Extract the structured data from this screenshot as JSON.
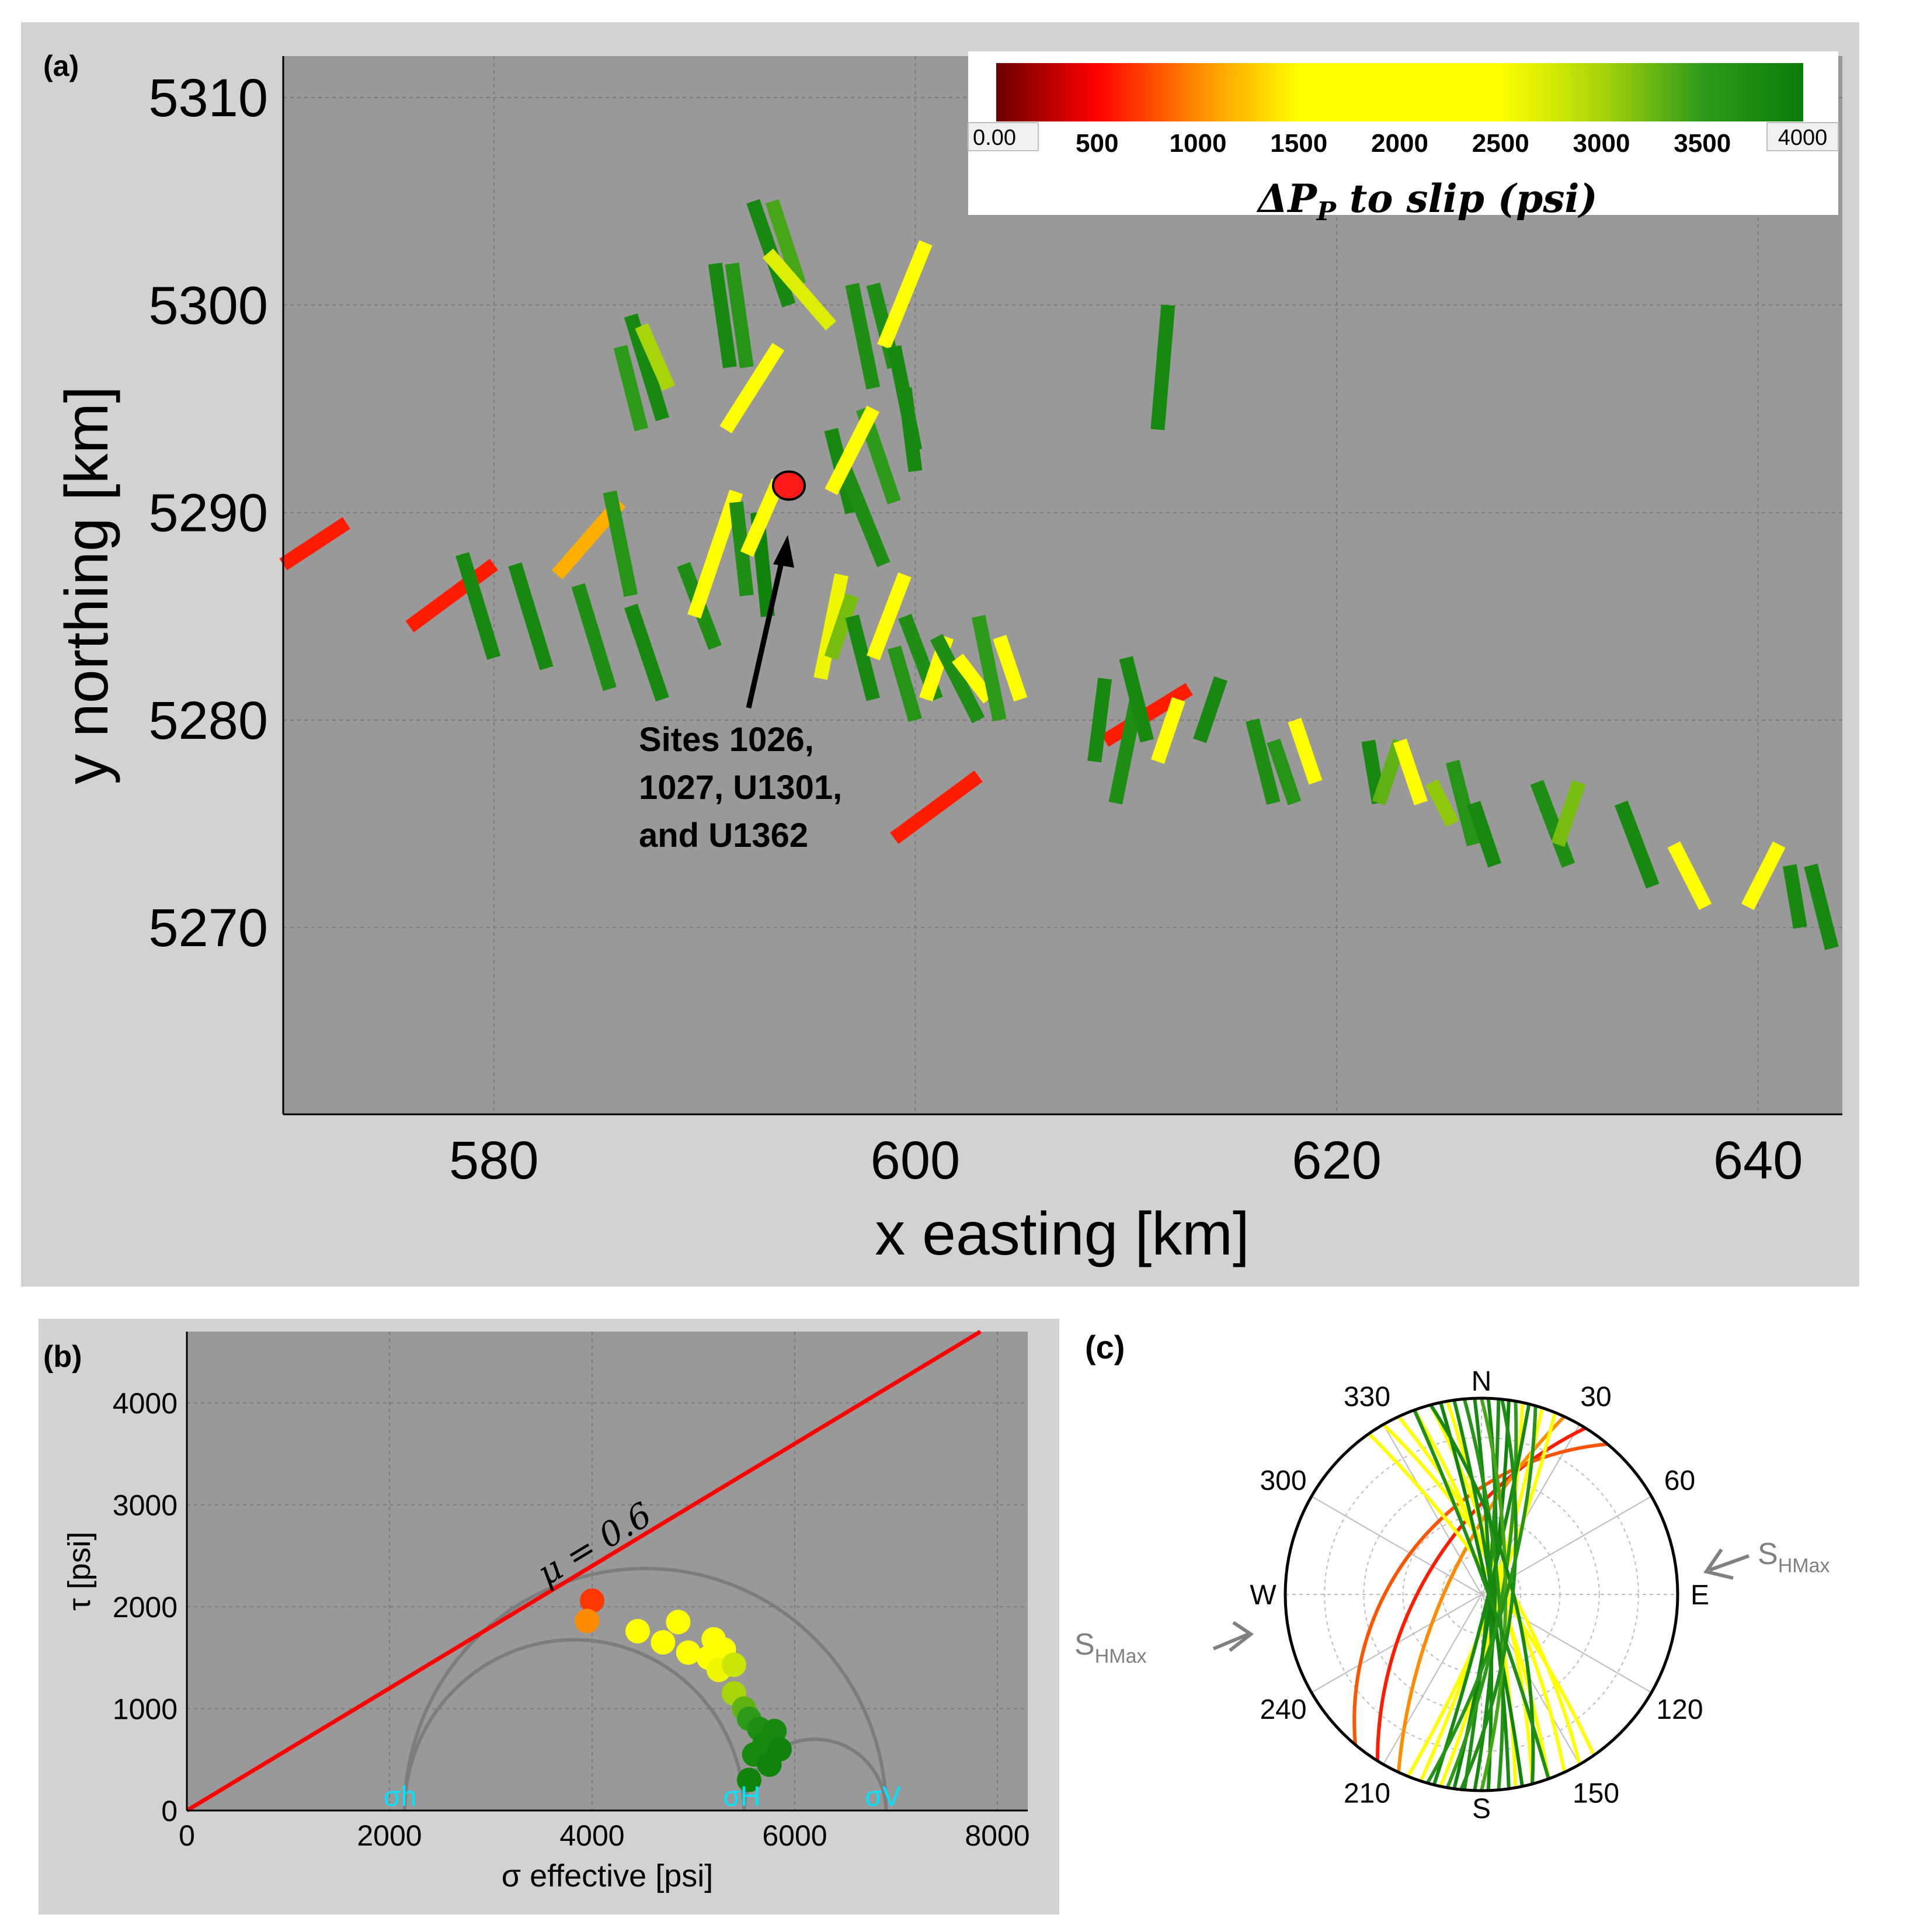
{
  "chart_data": [
    {
      "type": "map-segments",
      "panel_label": "(a)",
      "xlabel": "x easting [km]",
      "ylabel": "y northing [km]",
      "xlim": [
        570,
        644
      ],
      "ylim": [
        5261,
        5312
      ],
      "xticks": [
        580,
        600,
        620,
        640
      ],
      "yticks": [
        5270,
        5280,
        5290,
        5300,
        5310
      ],
      "grid": true,
      "colorbar": {
        "title": "ΔP_P to slip (psi)",
        "min": 0,
        "max": 4000,
        "tick_labels": [
          "0.00",
          "500",
          "1000",
          "1500",
          "2000",
          "2500",
          "3000",
          "3500",
          "4000"
        ],
        "stops": [
          {
            "value": 0,
            "color": "#6b0000"
          },
          {
            "value": 500,
            "color": "#ff0000"
          },
          {
            "value": 1000,
            "color": "#ff8c00"
          },
          {
            "value": 1500,
            "color": "#ffff00"
          },
          {
            "value": 2500,
            "color": "#ffff00"
          },
          {
            "value": 3000,
            "color": "#a8d40a"
          },
          {
            "value": 3500,
            "color": "#2e9a1a"
          },
          {
            "value": 4000,
            "color": "#087d0a"
          }
        ]
      },
      "site_marker": {
        "x": 594,
        "y": 5291.3,
        "color": "#ff1a1a"
      },
      "annotation": {
        "lines": [
          "Sites 1026,",
          "1027, U1301,",
          "and U1362"
        ]
      },
      "segments": [
        {
          "x1": 570,
          "y1": 5287.5,
          "x2": 573,
          "y2": 5289.5,
          "v": 600
        },
        {
          "x1": 576,
          "y1": 5284.5,
          "x2": 580,
          "y2": 5287.5,
          "v": 600
        },
        {
          "x1": 599,
          "y1": 5274.3,
          "x2": 603,
          "y2": 5277.3,
          "v": 600
        },
        {
          "x1": 609,
          "y1": 5279,
          "x2": 613,
          "y2": 5281.5,
          "v": 600
        },
        {
          "x1": 583,
          "y1": 5287,
          "x2": 586,
          "y2": 5290.5,
          "v": 1150
        },
        {
          "x1": 578.5,
          "y1": 5288,
          "x2": 580,
          "y2": 5283,
          "v": 3800
        },
        {
          "x1": 581,
          "y1": 5287.5,
          "x2": 582.5,
          "y2": 5282.5,
          "v": 3800
        },
        {
          "x1": 584,
          "y1": 5286.5,
          "x2": 585.5,
          "y2": 5281.5,
          "v": 3700
        },
        {
          "x1": 586.5,
          "y1": 5285.5,
          "x2": 588,
          "y2": 5281,
          "v": 3800
        },
        {
          "x1": 585.5,
          "y1": 5291,
          "x2": 586.5,
          "y2": 5286,
          "v": 3600
        },
        {
          "x1": 586,
          "y1": 5298,
          "x2": 587,
          "y2": 5294,
          "v": 3500
        },
        {
          "x1": 586.5,
          "y1": 5299.5,
          "x2": 588,
          "y2": 5294.5,
          "v": 3800
        },
        {
          "x1": 587,
          "y1": 5299,
          "x2": 588.3,
          "y2": 5296,
          "v": 3000
        },
        {
          "x1": 589,
          "y1": 5287.5,
          "x2": 590.5,
          "y2": 5283.5,
          "v": 3700
        },
        {
          "x1": 589.5,
          "y1": 5285,
          "x2": 591.5,
          "y2": 5291,
          "v": 2200
        },
        {
          "x1": 591,
          "y1": 5294,
          "x2": 593.5,
          "y2": 5298,
          "v": 2000
        },
        {
          "x1": 590.5,
          "y1": 5302,
          "x2": 591.2,
          "y2": 5297,
          "v": 3800
        },
        {
          "x1": 591.3,
          "y1": 5302,
          "x2": 592,
          "y2": 5297,
          "v": 3600
        },
        {
          "x1": 592.3,
          "y1": 5305,
          "x2": 594,
          "y2": 5300,
          "v": 3800
        },
        {
          "x1": 593.2,
          "y1": 5305,
          "x2": 594.5,
          "y2": 5301,
          "v": 3400
        },
        {
          "x1": 593,
          "y1": 5302.5,
          "x2": 596,
          "y2": 5299,
          "v": 2700
        },
        {
          "x1": 591.5,
          "y1": 5290.5,
          "x2": 592,
          "y2": 5286,
          "v": 3700
        },
        {
          "x1": 592.5,
          "y1": 5290,
          "x2": 593,
          "y2": 5285,
          "v": 3900
        },
        {
          "x1": 592,
          "y1": 5288,
          "x2": 593.5,
          "y2": 5291.5,
          "v": 2200
        },
        {
          "x1": 596,
          "y1": 5294,
          "x2": 597,
          "y2": 5290,
          "v": 3800
        },
        {
          "x1": 596.5,
          "y1": 5292.5,
          "x2": 598.5,
          "y2": 5287.5,
          "v": 3700
        },
        {
          "x1": 597.5,
          "y1": 5295,
          "x2": 599,
          "y2": 5290.5,
          "v": 3500
        },
        {
          "x1": 597,
          "y1": 5301,
          "x2": 598,
          "y2": 5296,
          "v": 3700
        },
        {
          "x1": 598,
          "y1": 5301,
          "x2": 599,
          "y2": 5297,
          "v": 3700
        },
        {
          "x1": 598.5,
          "y1": 5298,
          "x2": 600.5,
          "y2": 5303,
          "v": 2200
        },
        {
          "x1": 599,
          "y1": 5298,
          "x2": 600,
          "y2": 5293,
          "v": 3800
        },
        {
          "x1": 599.5,
          "y1": 5296,
          "x2": 600,
          "y2": 5292,
          "v": 3800
        },
        {
          "x1": 596,
          "y1": 5291,
          "x2": 598,
          "y2": 5295,
          "v": 2200
        },
        {
          "x1": 595.5,
          "y1": 5282,
          "x2": 596.5,
          "y2": 5287,
          "v": 2600
        },
        {
          "x1": 596,
          "y1": 5283,
          "x2": 597,
          "y2": 5286,
          "v": 3200
        },
        {
          "x1": 597,
          "y1": 5285,
          "x2": 598,
          "y2": 5281,
          "v": 3800
        },
        {
          "x1": 598,
          "y1": 5283,
          "x2": 599.5,
          "y2": 5287,
          "v": 2200
        },
        {
          "x1": 599,
          "y1": 5283.5,
          "x2": 600,
          "y2": 5280,
          "v": 3600
        },
        {
          "x1": 599.5,
          "y1": 5285,
          "x2": 601,
          "y2": 5281,
          "v": 3700
        },
        {
          "x1": 600.5,
          "y1": 5281,
          "x2": 601.5,
          "y2": 5284,
          "v": 2000
        },
        {
          "x1": 601,
          "y1": 5284,
          "x2": 603,
          "y2": 5280,
          "v": 3700
        },
        {
          "x1": 602,
          "y1": 5283,
          "x2": 603.5,
          "y2": 5281,
          "v": 2400
        },
        {
          "x1": 603,
          "y1": 5285,
          "x2": 604,
          "y2": 5280,
          "v": 3500
        },
        {
          "x1": 604,
          "y1": 5284,
          "x2": 605,
          "y2": 5281,
          "v": 2100
        },
        {
          "x1": 608.5,
          "y1": 5278,
          "x2": 609,
          "y2": 5282,
          "v": 3800
        },
        {
          "x1": 609.5,
          "y1": 5276,
          "x2": 610.5,
          "y2": 5281,
          "v": 3700
        },
        {
          "x1": 610,
          "y1": 5283,
          "x2": 611,
          "y2": 5279,
          "v": 3800
        },
        {
          "x1": 611.5,
          "y1": 5278,
          "x2": 612.5,
          "y2": 5281,
          "v": 2000
        },
        {
          "x1": 613.5,
          "y1": 5279,
          "x2": 614.5,
          "y2": 5282,
          "v": 3800
        },
        {
          "x1": 616,
          "y1": 5280,
          "x2": 617,
          "y2": 5276,
          "v": 3700
        },
        {
          "x1": 617,
          "y1": 5279,
          "x2": 618,
          "y2": 5276,
          "v": 3600
        },
        {
          "x1": 618,
          "y1": 5280,
          "x2": 619,
          "y2": 5277,
          "v": 2400
        },
        {
          "x1": 621.5,
          "y1": 5279,
          "x2": 622,
          "y2": 5276,
          "v": 3800
        },
        {
          "x1": 622,
          "y1": 5276,
          "x2": 623,
          "y2": 5279,
          "v": 3300
        },
        {
          "x1": 623,
          "y1": 5279,
          "x2": 624,
          "y2": 5276,
          "v": 2500
        },
        {
          "x1": 624.5,
          "y1": 5277,
          "x2": 625.5,
          "y2": 5275,
          "v": 3100
        },
        {
          "x1": 625.5,
          "y1": 5278,
          "x2": 626.5,
          "y2": 5274,
          "v": 3600
        },
        {
          "x1": 626.5,
          "y1": 5276,
          "x2": 627.5,
          "y2": 5273,
          "v": 3800
        },
        {
          "x1": 629.5,
          "y1": 5277,
          "x2": 631,
          "y2": 5273,
          "v": 3700
        },
        {
          "x1": 630.5,
          "y1": 5274,
          "x2": 631.5,
          "y2": 5277,
          "v": 3200
        },
        {
          "x1": 633.5,
          "y1": 5276,
          "x2": 635,
          "y2": 5272,
          "v": 3800
        },
        {
          "x1": 636,
          "y1": 5274,
          "x2": 637.5,
          "y2": 5271,
          "v": 2000
        },
        {
          "x1": 639.5,
          "y1": 5271,
          "x2": 641,
          "y2": 5274,
          "v": 2100
        },
        {
          "x1": 641.5,
          "y1": 5273,
          "x2": 642,
          "y2": 5270,
          "v": 3800
        },
        {
          "x1": 642.5,
          "y1": 5273,
          "x2": 643.5,
          "y2": 5269,
          "v": 3800
        },
        {
          "x1": 611.5,
          "y1": 5294,
          "x2": 612,
          "y2": 5300,
          "v": 3800
        }
      ]
    },
    {
      "type": "scatter",
      "panel_label": "(b)",
      "xlabel": "σ effective [psi]",
      "ylabel": "τ [psi]",
      "xlim": [
        0,
        8300
      ],
      "ylim": [
        0,
        4700
      ],
      "xticks": [
        0,
        2000,
        4000,
        6000,
        8000
      ],
      "yticks": [
        0,
        1000,
        2000,
        3000,
        4000
      ],
      "grid": true,
      "failure_line": {
        "label": "μ = 0.6",
        "mu": 0.6,
        "color": "#ff0000"
      },
      "principal_stresses": [
        {
          "label": "σh",
          "value": 2150
        },
        {
          "label": "σH",
          "value": 5500
        },
        {
          "label": "σV",
          "value": 6900
        }
      ],
      "points": [
        {
          "x": 4000,
          "y": 2060,
          "v": 700
        },
        {
          "x": 3950,
          "y": 1860,
          "v": 1000
        },
        {
          "x": 4450,
          "y": 1760,
          "v": 1800
        },
        {
          "x": 4700,
          "y": 1650,
          "v": 1900
        },
        {
          "x": 4850,
          "y": 1850,
          "v": 1900
        },
        {
          "x": 4950,
          "y": 1550,
          "v": 2000
        },
        {
          "x": 5150,
          "y": 1500,
          "v": 2000
        },
        {
          "x": 5200,
          "y": 1680,
          "v": 2100
        },
        {
          "x": 5300,
          "y": 1580,
          "v": 2300
        },
        {
          "x": 5250,
          "y": 1380,
          "v": 2600
        },
        {
          "x": 5400,
          "y": 1430,
          "v": 2800
        },
        {
          "x": 5400,
          "y": 1150,
          "v": 3000
        },
        {
          "x": 5500,
          "y": 1000,
          "v": 3300
        },
        {
          "x": 5550,
          "y": 900,
          "v": 3500
        },
        {
          "x": 5650,
          "y": 800,
          "v": 3700
        },
        {
          "x": 5700,
          "y": 650,
          "v": 3800
        },
        {
          "x": 5600,
          "y": 550,
          "v": 3800
        },
        {
          "x": 5800,
          "y": 780,
          "v": 3800
        },
        {
          "x": 5850,
          "y": 600,
          "v": 3900
        },
        {
          "x": 5550,
          "y": 300,
          "v": 3900
        },
        {
          "x": 5750,
          "y": 450,
          "v": 3900
        }
      ]
    },
    {
      "type": "stereonet",
      "panel_label": "(c)",
      "directions": {
        "N": "N",
        "E": "E",
        "S": "S",
        "W": "W"
      },
      "azimuth_labels": [
        "30",
        "60",
        "120",
        "150",
        "210",
        "240",
        "300",
        "330"
      ],
      "shmax_label": "S",
      "shmax_sub": "HMax",
      "planes": [
        {
          "strike": 212,
          "dip": 58,
          "v": 600
        },
        {
          "strike": 220,
          "dip": 45,
          "v": 800
        },
        {
          "strike": 205,
          "dip": 70,
          "v": 1000
        },
        {
          "strike": 340,
          "dip": 80,
          "v": 2000
        },
        {
          "strike": 345,
          "dip": 78,
          "v": 2100
        },
        {
          "strike": 350,
          "dip": 82,
          "v": 1900
        },
        {
          "strike": 335,
          "dip": 76,
          "v": 2200
        },
        {
          "strike": 330,
          "dip": 74,
          "v": 2400
        },
        {
          "strike": 325,
          "dip": 80,
          "v": 2100
        },
        {
          "strike": 18,
          "dip": 84,
          "v": 2000
        },
        {
          "strike": 22,
          "dip": 82,
          "v": 2300
        },
        {
          "strike": 12,
          "dip": 80,
          "v": 2500
        },
        {
          "strike": 358,
          "dip": 85,
          "v": 3800
        },
        {
          "strike": 2,
          "dip": 82,
          "v": 3800
        },
        {
          "strike": 5,
          "dip": 86,
          "v": 3700
        },
        {
          "strike": 8,
          "dip": 84,
          "v": 3900
        },
        {
          "strike": 355,
          "dip": 80,
          "v": 3600
        },
        {
          "strike": 352,
          "dip": 84,
          "v": 3800
        },
        {
          "strike": 348,
          "dip": 86,
          "v": 3900
        },
        {
          "strike": 10,
          "dip": 78,
          "v": 3500
        },
        {
          "strike": 14,
          "dip": 86,
          "v": 3800
        },
        {
          "strike": 0,
          "dip": 76,
          "v": 3400
        },
        {
          "strike": 345,
          "dip": 72,
          "v": 3800
        },
        {
          "strike": 6,
          "dip": 72,
          "v": 3700
        },
        {
          "strike": 16,
          "dip": 76,
          "v": 3600
        },
        {
          "strike": 340,
          "dip": 86,
          "v": 3700
        }
      ]
    }
  ]
}
